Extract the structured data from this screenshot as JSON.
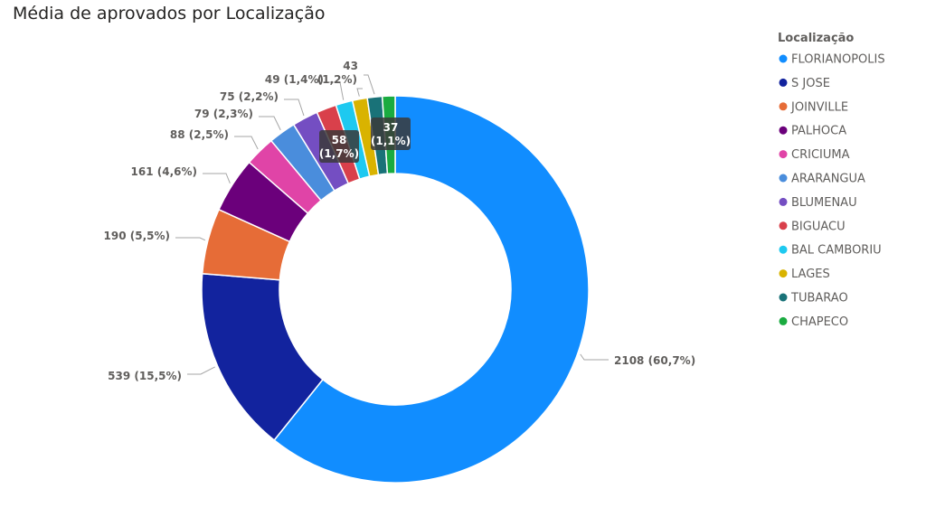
{
  "chart_data": {
    "type": "pie",
    "title": "Média de aprovados por Localização",
    "legend_title": "Localização",
    "legend_position": "right",
    "slices": [
      {
        "name": "FLORIANOPOLIS",
        "value": 2108,
        "label": "2108 (60,7%)",
        "color": "#118dff"
      },
      {
        "name": "S JOSE",
        "value": 539,
        "label": "539 (15,5%)",
        "color": "#12239e"
      },
      {
        "name": "JOINVILLE",
        "value": 190,
        "label": "190 (5,5%)",
        "color": "#e66c37"
      },
      {
        "name": "PALHOCA",
        "value": 161,
        "label": "161 (4,6%)",
        "color": "#6b007b"
      },
      {
        "name": "CRICIUMA",
        "value": 88,
        "label": "88 (2,5%)",
        "color": "#e044a7"
      },
      {
        "name": "ARARANGUA",
        "value": 79,
        "label": "79 (2,3%)",
        "color": "#4a8ddc"
      },
      {
        "name": "BLUMENAU",
        "value": 75,
        "label": "75 (2,2%)",
        "color": "#744ec2"
      },
      {
        "name": "BIGUACU",
        "value": 58,
        "label": "58",
        "label2": "(1,7%)",
        "color": "#d9404b"
      },
      {
        "name": "BAL CAMBORIU",
        "value": 49,
        "label": "49 (1,4%)",
        "color": "#1ec9f0"
      },
      {
        "name": "LAGES",
        "value": 43,
        "label": "(1,2%)",
        "color": "#d9b300"
      },
      {
        "name": "TUBARAO",
        "value": 43,
        "label": "43",
        "color": "#197278"
      },
      {
        "name": "CHAPECO",
        "value": 37,
        "label": "37",
        "label2": "(1,1%)",
        "color": "#1aab40"
      }
    ]
  }
}
